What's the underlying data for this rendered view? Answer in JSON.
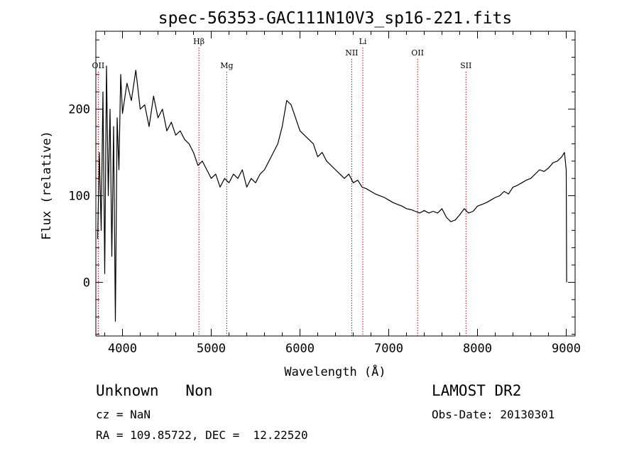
{
  "chart_data": {
    "type": "line",
    "title": "spec-56353-GAC111N10V3_sp16-221.fits",
    "xlabel": "Wavelength (Å)",
    "ylabel": "Flux (relative)",
    "xlim": [
      3700,
      9100
    ],
    "ylim": [
      -62,
      290
    ],
    "x_ticks": [
      4000,
      5000,
      6000,
      7000,
      8000,
      9000
    ],
    "y_ticks": [
      0,
      100,
      200
    ],
    "grid": false,
    "line_color": "#000000",
    "marker_color": "#cc0000",
    "line_markers": [
      {
        "label": "OII",
        "x": 3727,
        "level": 3
      },
      {
        "label": "Hβ",
        "x": 4861,
        "level": 1
      },
      {
        "label": "Mg",
        "x": 5175,
        "level": 3
      },
      {
        "label": "NII",
        "x": 6583,
        "level": 2
      },
      {
        "label": "Li",
        "x": 6708,
        "level": 1
      },
      {
        "label": "OII",
        "x": 7325,
        "level": 2
      },
      {
        "label": "SII",
        "x": 7870,
        "level": 3
      }
    ],
    "series": [
      {
        "x": [
          3720,
          3740,
          3760,
          3780,
          3800,
          3820,
          3840,
          3860,
          3880,
          3900,
          3920,
          3940,
          3960,
          3980,
          4000,
          4050,
          4100,
          4150,
          4200,
          4250,
          4300,
          4350,
          4400,
          4450,
          4500,
          4550,
          4600,
          4650,
          4700,
          4750,
          4800,
          4850,
          4900,
          4950,
          5000,
          5050,
          5100,
          5150,
          5200,
          5250,
          5300,
          5350,
          5400,
          5450,
          5500,
          5550,
          5600,
          5650,
          5700,
          5750,
          5800,
          5850,
          5900,
          5950,
          6000,
          6050,
          6100,
          6150,
          6200,
          6250,
          6300,
          6350,
          6400,
          6450,
          6500,
          6550,
          6600,
          6650,
          6700,
          6750,
          6800,
          6850,
          6900,
          6950,
          7000,
          7050,
          7100,
          7150,
          7200,
          7250,
          7300,
          7350,
          7400,
          7450,
          7500,
          7550,
          7600,
          7650,
          7700,
          7750,
          7800,
          7850,
          7900,
          7950,
          8000,
          8050,
          8100,
          8150,
          8200,
          8250,
          8300,
          8350,
          8400,
          8450,
          8500,
          8550,
          8600,
          8650,
          8700,
          8750,
          8800,
          8850,
          8900,
          8950,
          8980,
          9000,
          9005
        ],
        "y": [
          50,
          150,
          60,
          220,
          10,
          250,
          100,
          200,
          30,
          180,
          -45,
          190,
          130,
          240,
          195,
          230,
          210,
          245,
          200,
          205,
          180,
          215,
          190,
          200,
          175,
          185,
          170,
          175,
          165,
          160,
          150,
          135,
          140,
          130,
          120,
          125,
          110,
          120,
          115,
          125,
          120,
          130,
          110,
          120,
          115,
          125,
          130,
          140,
          150,
          160,
          180,
          210,
          205,
          190,
          175,
          170,
          165,
          160,
          145,
          150,
          140,
          135,
          130,
          125,
          120,
          125,
          115,
          118,
          110,
          108,
          105,
          102,
          100,
          98,
          95,
          92,
          90,
          88,
          85,
          84,
          82,
          80,
          83,
          80,
          82,
          80,
          85,
          75,
          70,
          72,
          78,
          85,
          80,
          82,
          88,
          90,
          92,
          95,
          98,
          100,
          105,
          102,
          110,
          112,
          115,
          118,
          120,
          125,
          130,
          128,
          132,
          138,
          140,
          145,
          150,
          130,
          0
        ]
      }
    ]
  },
  "info": {
    "class_line": "Unknown   Non",
    "cz_line": "cz = NaN",
    "radec_line": "RA = 109.85722, DEC =  12.22520",
    "survey": "LAMOST DR2",
    "obs_date": "Obs-Date: 20130301"
  }
}
